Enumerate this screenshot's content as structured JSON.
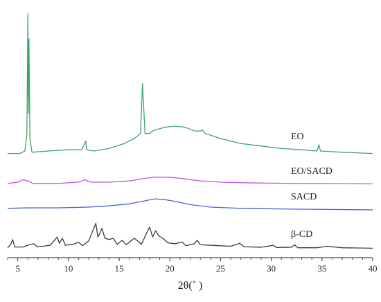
{
  "chart_data": {
    "type": "line",
    "title": "",
    "xlabel": "2θ(˚ )",
    "ylabel": "",
    "xlim": [
      4,
      40
    ],
    "xticks": [
      5,
      10,
      15,
      20,
      25,
      30,
      35,
      40
    ],
    "y_axis_shown": false,
    "grid": false,
    "series": [
      {
        "name": "EO",
        "color": "#3aa56a",
        "baseline": 4.4,
        "points": [
          [
            4.0,
            4.4
          ],
          [
            5.2,
            4.4
          ],
          [
            5.7,
            4.5
          ],
          [
            5.9,
            5.2
          ],
          [
            6.0,
            10.0
          ],
          [
            6.05,
            6.0
          ],
          [
            6.1,
            9.0
          ],
          [
            6.2,
            5.0
          ],
          [
            6.4,
            4.45
          ],
          [
            8.0,
            4.5
          ],
          [
            10.0,
            4.55
          ],
          [
            11.3,
            4.55
          ],
          [
            11.6,
            4.8
          ],
          [
            11.7,
            4.9
          ],
          [
            11.8,
            4.55
          ],
          [
            12.5,
            4.5
          ],
          [
            14.0,
            4.6
          ],
          [
            15.5,
            4.8
          ],
          [
            16.5,
            5.0
          ],
          [
            17.1,
            5.2
          ],
          [
            17.3,
            7.2
          ],
          [
            17.45,
            6.0
          ],
          [
            17.55,
            5.2
          ],
          [
            18.0,
            5.2
          ],
          [
            18.3,
            5.3
          ],
          [
            18.6,
            5.35
          ],
          [
            19.5,
            5.45
          ],
          [
            20.5,
            5.5
          ],
          [
            21.5,
            5.45
          ],
          [
            22.5,
            5.3
          ],
          [
            23.0,
            5.3
          ],
          [
            23.2,
            5.35
          ],
          [
            23.5,
            5.2
          ],
          [
            25.0,
            5.0
          ],
          [
            27.0,
            4.8
          ],
          [
            29.0,
            4.7
          ],
          [
            31.0,
            4.6
          ],
          [
            33.0,
            4.55
          ],
          [
            34.5,
            4.5
          ],
          [
            34.7,
            4.75
          ],
          [
            34.85,
            4.5
          ],
          [
            37.0,
            4.45
          ],
          [
            40.0,
            4.4
          ]
        ]
      },
      {
        "name": "EO/SACD",
        "color": "#c055dd",
        "baseline": 3.2,
        "points": [
          [
            4.0,
            3.2
          ],
          [
            5.0,
            3.25
          ],
          [
            5.5,
            3.35
          ],
          [
            6.0,
            3.3
          ],
          [
            6.5,
            3.2
          ],
          [
            9.0,
            3.2
          ],
          [
            11.0,
            3.25
          ],
          [
            11.6,
            3.35
          ],
          [
            12.2,
            3.25
          ],
          [
            14.0,
            3.25
          ],
          [
            16.0,
            3.3
          ],
          [
            17.5,
            3.4
          ],
          [
            18.5,
            3.45
          ],
          [
            20.0,
            3.45
          ],
          [
            21.5,
            3.38
          ],
          [
            23.0,
            3.3
          ],
          [
            25.0,
            3.25
          ],
          [
            28.0,
            3.22
          ],
          [
            32.0,
            3.2
          ],
          [
            40.0,
            3.18
          ]
        ]
      },
      {
        "name": "SACD",
        "color": "#4a64dd",
        "baseline": 2.2,
        "points": [
          [
            4.0,
            2.2
          ],
          [
            6.0,
            2.22
          ],
          [
            9.0,
            2.22
          ],
          [
            12.0,
            2.25
          ],
          [
            14.0,
            2.3
          ],
          [
            16.0,
            2.38
          ],
          [
            17.5,
            2.5
          ],
          [
            18.5,
            2.58
          ],
          [
            19.5,
            2.55
          ],
          [
            20.5,
            2.48
          ],
          [
            22.0,
            2.35
          ],
          [
            24.0,
            2.25
          ],
          [
            27.0,
            2.2
          ],
          [
            32.0,
            2.17
          ],
          [
            40.0,
            2.14
          ]
        ]
      },
      {
        "name": "β-CD",
        "color": "#3a3a3a",
        "baseline": 0.6,
        "points": [
          [
            4.0,
            0.62
          ],
          [
            4.3,
            0.75
          ],
          [
            4.5,
            0.95
          ],
          [
            4.7,
            0.65
          ],
          [
            5.5,
            0.65
          ],
          [
            6.2,
            0.75
          ],
          [
            6.6,
            0.78
          ],
          [
            6.9,
            0.66
          ],
          [
            7.5,
            0.68
          ],
          [
            8.2,
            0.72
          ],
          [
            8.9,
            1.05
          ],
          [
            9.1,
            0.8
          ],
          [
            9.4,
            1.0
          ],
          [
            9.7,
            0.72
          ],
          [
            10.5,
            0.76
          ],
          [
            11.0,
            0.84
          ],
          [
            11.4,
            0.7
          ],
          [
            12.0,
            0.9
          ],
          [
            12.4,
            1.3
          ],
          [
            12.7,
            1.6
          ],
          [
            12.9,
            1.05
          ],
          [
            13.1,
            1.2
          ],
          [
            13.3,
            1.4
          ],
          [
            13.6,
            1.0
          ],
          [
            14.0,
            0.95
          ],
          [
            14.4,
            1.0
          ],
          [
            14.8,
            0.76
          ],
          [
            15.3,
            0.92
          ],
          [
            15.7,
            0.74
          ],
          [
            16.1,
            0.88
          ],
          [
            16.5,
            1.0
          ],
          [
            16.8,
            0.9
          ],
          [
            17.2,
            0.76
          ],
          [
            17.6,
            1.12
          ],
          [
            18.0,
            1.45
          ],
          [
            18.3,
            1.05
          ],
          [
            18.6,
            1.3
          ],
          [
            18.9,
            1.1
          ],
          [
            19.3,
            1.0
          ],
          [
            19.8,
            0.82
          ],
          [
            20.5,
            0.78
          ],
          [
            21.2,
            0.85
          ],
          [
            21.6,
            0.7
          ],
          [
            22.4,
            0.78
          ],
          [
            22.7,
            0.92
          ],
          [
            23.0,
            0.74
          ],
          [
            24.0,
            0.72
          ],
          [
            25.0,
            0.7
          ],
          [
            26.0,
            0.68
          ],
          [
            26.9,
            0.8
          ],
          [
            27.3,
            0.66
          ],
          [
            29.0,
            0.64
          ],
          [
            30.2,
            0.72
          ],
          [
            30.5,
            0.63
          ],
          [
            32.0,
            0.64
          ],
          [
            32.3,
            0.74
          ],
          [
            32.6,
            0.62
          ],
          [
            34.5,
            0.62
          ],
          [
            35.5,
            0.68
          ],
          [
            37.0,
            0.62
          ],
          [
            40.0,
            0.6
          ]
        ]
      }
    ]
  }
}
